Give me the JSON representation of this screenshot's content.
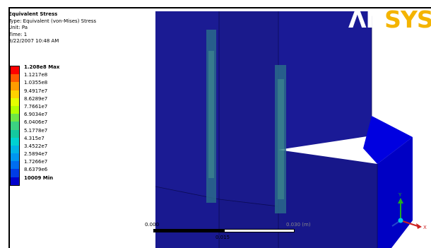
{
  "result": {
    "title": "Equivalent Stress",
    "type": "Type: Equivalent (von-Mises) Stress",
    "unit": "Unit: Pa",
    "time": "Time: 1",
    "timestamp": "8/22/2007 10:48 AM"
  },
  "legend": {
    "labels": [
      "1.208e8 Max",
      "1.1217e8",
      "1.0355e8",
      "9.4917e7",
      "8.6289e7",
      "7.7661e7",
      "6.9034e7",
      "6.0406e7",
      "5.1778e7",
      "4.315e7",
      "3.4522e7",
      "2.5894e7",
      "1.7266e7",
      "8.6379e6",
      "10009 Min"
    ],
    "colors": [
      "#ff0000",
      "#ff5a00",
      "#ff9c00",
      "#ffd200",
      "#e6ff00",
      "#b4ff00",
      "#6ee646",
      "#3cd282",
      "#14c8a0",
      "#00d2d2",
      "#00b4e6",
      "#0096f0",
      "#006ef0",
      "#003ce6",
      "#0000cd"
    ]
  },
  "logo": {
    "text_an": "ΛN",
    "text_sys": "SYS"
  },
  "scale_bar": {
    "left": "0.000",
    "mid": "0.015",
    "right": "0.030 (m)"
  },
  "triad": {
    "y": "Y",
    "x": "X"
  }
}
